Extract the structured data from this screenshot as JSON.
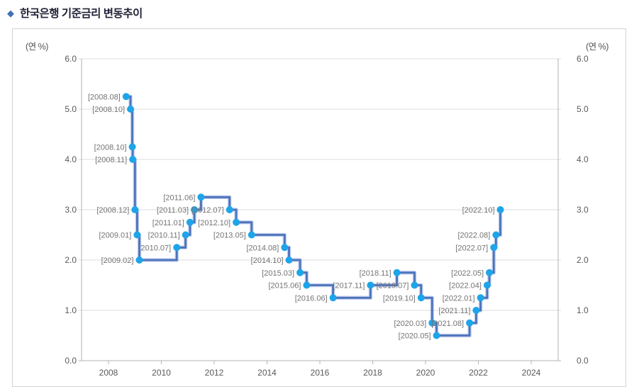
{
  "page": {
    "title": "한국은행 기준금리 변동추이",
    "title_icon": "◆"
  },
  "chart_data": {
    "type": "line",
    "subtype": "step-after",
    "title": "한국은행 기준금리 변동추이",
    "unit_label_left": "(연 %)",
    "unit_label_right": "(연 %)",
    "ylabel": "(연 %)",
    "ylim": [
      0.0,
      6.0
    ],
    "grid": true,
    "legend_position": "none",
    "yticks": [
      "6.0",
      "5.0",
      "4.0",
      "3.0",
      "2.0",
      "1.0",
      "0.0"
    ],
    "xticks": [
      "2008",
      "2010",
      "2012",
      "2014",
      "2016",
      "2018",
      "2020",
      "2022",
      "2024"
    ],
    "colors": {
      "grid": "#dcdcdc",
      "axis": "#b3b3b3",
      "tick_text": "#595959",
      "line": "#4c72bb",
      "line_halo": "#7d9ad6",
      "marker": "#1ea5e9",
      "point_label": "#737373"
    },
    "points": [
      {
        "label": "[2008.08]",
        "year": 2008,
        "month": 8,
        "rate": 5.25
      },
      {
        "label": "[2008.10]",
        "year": 2008,
        "month": 10,
        "rate": 5.0
      },
      {
        "label": "[2008.10]",
        "year": 2008,
        "month": 10,
        "rate": 4.25
      },
      {
        "label": "[2008.11]",
        "year": 2008,
        "month": 11,
        "rate": 4.0
      },
      {
        "label": "[2008.12]",
        "year": 2008,
        "month": 12,
        "rate": 3.0
      },
      {
        "label": "[2009.01]",
        "year": 2009,
        "month": 1,
        "rate": 2.5
      },
      {
        "label": "[2009.02]",
        "year": 2009,
        "month": 2,
        "rate": 2.0
      },
      {
        "label": "[2010.07]",
        "year": 2010,
        "month": 7,
        "rate": 2.25
      },
      {
        "label": "[2010.11]",
        "year": 2010,
        "month": 11,
        "rate": 2.5
      },
      {
        "label": "[2011.01]",
        "year": 2011,
        "month": 1,
        "rate": 2.75
      },
      {
        "label": "[2011.03]",
        "year": 2011,
        "month": 3,
        "rate": 3.0
      },
      {
        "label": "[2011.06]",
        "year": 2011,
        "month": 6,
        "rate": 3.25
      },
      {
        "label": "[2012.07]",
        "year": 2012,
        "month": 7,
        "rate": 3.0
      },
      {
        "label": "[2012.10]",
        "year": 2012,
        "month": 10,
        "rate": 2.75
      },
      {
        "label": "[2013.05]",
        "year": 2013,
        "month": 5,
        "rate": 2.5
      },
      {
        "label": "[2014.08]",
        "year": 2014,
        "month": 8,
        "rate": 2.25
      },
      {
        "label": "[2014.10]",
        "year": 2014,
        "month": 10,
        "rate": 2.0
      },
      {
        "label": "[2015.03]",
        "year": 2015,
        "month": 3,
        "rate": 1.75
      },
      {
        "label": "[2015.06]",
        "year": 2015,
        "month": 6,
        "rate": 1.5
      },
      {
        "label": "[2016.06]",
        "year": 2016,
        "month": 6,
        "rate": 1.25
      },
      {
        "label": "[2017.11]",
        "year": 2017,
        "month": 11,
        "rate": 1.5
      },
      {
        "label": "[2018.11]",
        "year": 2018,
        "month": 11,
        "rate": 1.75
      },
      {
        "label": "[2019.07]",
        "year": 2019,
        "month": 7,
        "rate": 1.5
      },
      {
        "label": "[2019.10]",
        "year": 2019,
        "month": 10,
        "rate": 1.25
      },
      {
        "label": "[2020.03]",
        "year": 2020,
        "month": 3,
        "rate": 0.75
      },
      {
        "label": "[2020.05]",
        "year": 2020,
        "month": 5,
        "rate": 0.5
      },
      {
        "label": "[2021.08]",
        "year": 2021,
        "month": 8,
        "rate": 0.75
      },
      {
        "label": "[2021.11]",
        "year": 2021,
        "month": 11,
        "rate": 1.0
      },
      {
        "label": "[2022.01]",
        "year": 2022,
        "month": 1,
        "rate": 1.25
      },
      {
        "label": "[2022.04]",
        "year": 2022,
        "month": 4,
        "rate": 1.5
      },
      {
        "label": "[2022.05]",
        "year": 2022,
        "month": 5,
        "rate": 1.75
      },
      {
        "label": "[2022.07]",
        "year": 2022,
        "month": 7,
        "rate": 2.25
      },
      {
        "label": "[2022.08]",
        "year": 2022,
        "month": 8,
        "rate": 2.5
      },
      {
        "label": "[2022.10]",
        "year": 2022,
        "month": 10,
        "rate": 3.0
      }
    ]
  }
}
